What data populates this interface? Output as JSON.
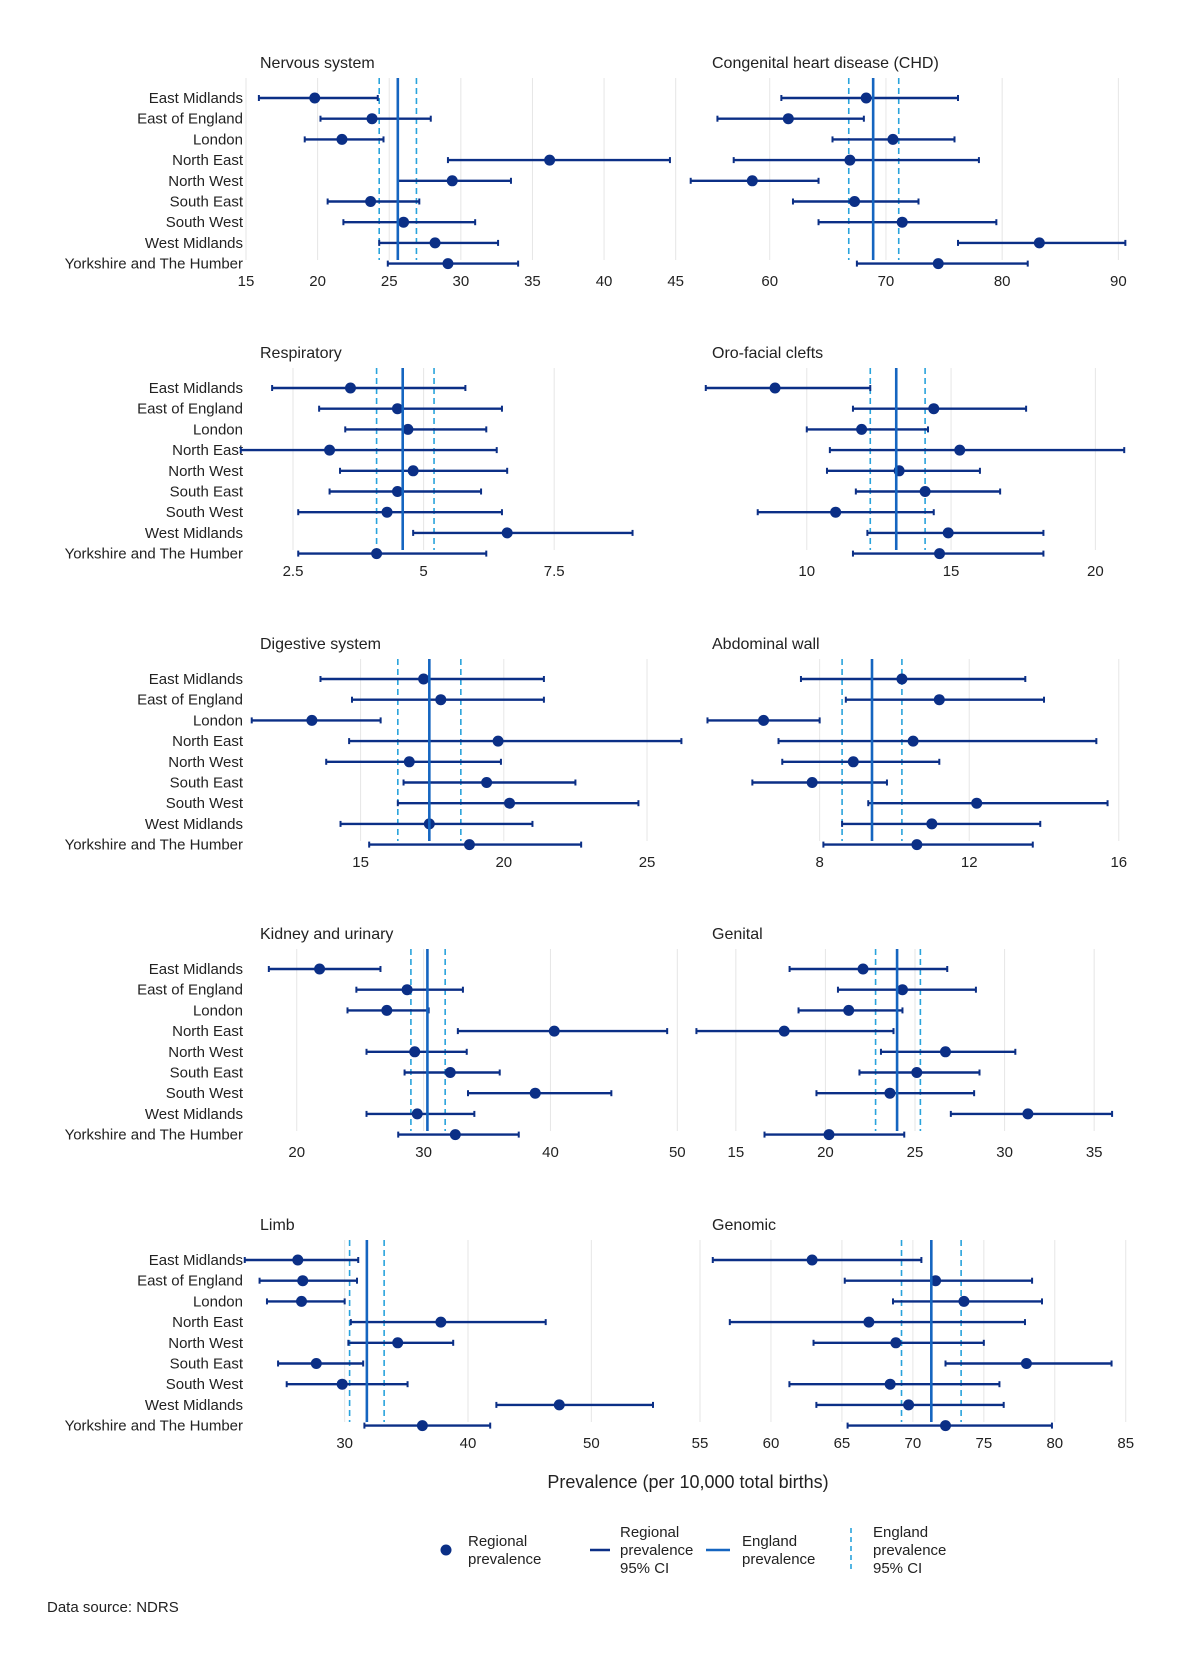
{
  "regions": [
    "East Midlands",
    "East of England",
    "London",
    "North East",
    "North West",
    "South East",
    "South West",
    "West Midlands",
    "Yorkshire and The Humber"
  ],
  "x_axis_title": "Prevalence (per 10,000 total births)",
  "source": "Data source: NDRS",
  "legend": [
    {
      "key": "point",
      "label": "Regional prevalence"
    },
    {
      "key": "ci",
      "label": "Regional prevalence 95% CI"
    },
    {
      "key": "england",
      "label": "England prevalence"
    },
    {
      "key": "england_ci",
      "label": "England prevalence 95% CI"
    }
  ],
  "colors": {
    "point": "#0b2f86",
    "england": "#1565c0",
    "england_ci": "#29a3dc",
    "grid": "#e6e6e6",
    "text": "#222222"
  },
  "chart_data": [
    {
      "type": "scatter",
      "title": "Nervous system",
      "xlim": [
        15,
        46
      ],
      "ticks": [
        15,
        20,
        25,
        30,
        35,
        40,
        45
      ],
      "england": 25.6,
      "england_ci": [
        24.3,
        26.9
      ],
      "series": [
        {
          "region": "East Midlands",
          "value": 19.8,
          "low": 15.9,
          "high": 24.2
        },
        {
          "region": "East of England",
          "value": 23.8,
          "low": 20.2,
          "high": 27.9
        },
        {
          "region": "London",
          "value": 21.7,
          "low": 19.1,
          "high": 24.6
        },
        {
          "region": "North East",
          "value": 36.2,
          "low": 29.1,
          "high": 44.6
        },
        {
          "region": "North West",
          "value": 29.4,
          "low": 25.6,
          "high": 33.5
        },
        {
          "region": "South East",
          "value": 23.7,
          "low": 20.7,
          "high": 27.1
        },
        {
          "region": "South West",
          "value": 26.0,
          "low": 21.8,
          "high": 31.0
        },
        {
          "region": "West Midlands",
          "value": 28.2,
          "low": 24.3,
          "high": 32.6
        },
        {
          "region": "Yorkshire and The Humber",
          "value": 29.1,
          "low": 24.9,
          "high": 34.0
        }
      ]
    },
    {
      "type": "scatter",
      "title": "Congenital heart disease (CHD)",
      "xlim": [
        54,
        91
      ],
      "ticks": [
        60,
        70,
        80,
        90
      ],
      "england": 68.9,
      "england_ci": [
        66.8,
        71.1
      ],
      "series": [
        {
          "region": "East Midlands",
          "value": 68.3,
          "low": 61.0,
          "high": 76.2
        },
        {
          "region": "East of England",
          "value": 61.6,
          "low": 55.5,
          "high": 68.1
        },
        {
          "region": "London",
          "value": 70.6,
          "low": 65.4,
          "high": 75.9
        },
        {
          "region": "North East",
          "value": 66.9,
          "low": 56.9,
          "high": 78.0
        },
        {
          "region": "North West",
          "value": 58.5,
          "low": 53.2,
          "high": 64.2
        },
        {
          "region": "South East",
          "value": 67.3,
          "low": 62.0,
          "high": 72.8
        },
        {
          "region": "South West",
          "value": 71.4,
          "low": 64.2,
          "high": 79.5
        },
        {
          "region": "West Midlands",
          "value": 83.2,
          "low": 76.2,
          "high": 90.6
        },
        {
          "region": "Yorkshire and The Humber",
          "value": 74.5,
          "low": 67.5,
          "high": 82.2
        }
      ]
    },
    {
      "type": "scatter",
      "title": "Respiratory",
      "xlim": [
        1.6,
        10.1
      ],
      "ticks": [
        2.5,
        5,
        7.5
      ],
      "england": 4.6,
      "england_ci": [
        4.1,
        5.2
      ],
      "series": [
        {
          "region": "East Midlands",
          "value": 3.6,
          "low": 2.1,
          "high": 5.8
        },
        {
          "region": "East of England",
          "value": 4.5,
          "low": 3.0,
          "high": 6.5
        },
        {
          "region": "London",
          "value": 4.7,
          "low": 3.5,
          "high": 6.2
        },
        {
          "region": "North East",
          "value": 3.2,
          "low": 1.5,
          "high": 6.4
        },
        {
          "region": "North West",
          "value": 4.8,
          "low": 3.4,
          "high": 6.6
        },
        {
          "region": "South East",
          "value": 4.5,
          "low": 3.2,
          "high": 6.1
        },
        {
          "region": "South West",
          "value": 4.3,
          "low": 2.6,
          "high": 6.5
        },
        {
          "region": "West Midlands",
          "value": 6.6,
          "low": 4.8,
          "high": 9.0
        },
        {
          "region": "Yorkshire and The Humber",
          "value": 4.1,
          "low": 2.6,
          "high": 6.2
        }
      ]
    },
    {
      "type": "scatter",
      "title": "Oro-facial clefts",
      "xlim": [
        6.3,
        21.2
      ],
      "ticks": [
        10,
        15,
        20
      ],
      "england": 13.1,
      "england_ci": [
        12.2,
        14.1
      ],
      "series": [
        {
          "region": "East Midlands",
          "value": 8.9,
          "low": 6.5,
          "high": 12.2
        },
        {
          "region": "East of England",
          "value": 14.4,
          "low": 11.6,
          "high": 17.6
        },
        {
          "region": "London",
          "value": 11.9,
          "low": 10.0,
          "high": 14.2
        },
        {
          "region": "North East",
          "value": 15.3,
          "low": 10.8,
          "high": 21.0
        },
        {
          "region": "North West",
          "value": 13.2,
          "low": 10.7,
          "high": 16.0
        },
        {
          "region": "South East",
          "value": 14.1,
          "low": 11.7,
          "high": 16.7
        },
        {
          "region": "South West",
          "value": 11.0,
          "low": 8.3,
          "high": 14.4
        },
        {
          "region": "West Midlands",
          "value": 14.9,
          "low": 12.1,
          "high": 18.2
        },
        {
          "region": "Yorkshire and The Humber",
          "value": 14.6,
          "low": 11.6,
          "high": 18.2
        }
      ]
    },
    {
      "type": "scatter",
      "title": "Digestive system",
      "xlim": [
        11,
        26.5
      ],
      "ticks": [
        15,
        20,
        25
      ],
      "england": 17.4,
      "england_ci": [
        16.3,
        18.5
      ],
      "series": [
        {
          "region": "East Midlands",
          "value": 17.2,
          "low": 13.6,
          "high": 21.4
        },
        {
          "region": "East of England",
          "value": 17.8,
          "low": 14.7,
          "high": 21.4
        },
        {
          "region": "London",
          "value": 13.3,
          "low": 11.2,
          "high": 15.7
        },
        {
          "region": "North East",
          "value": 19.8,
          "low": 14.6,
          "high": 26.2
        },
        {
          "region": "North West",
          "value": 16.7,
          "low": 13.8,
          "high": 19.9
        },
        {
          "region": "South East",
          "value": 19.4,
          "low": 16.5,
          "high": 22.5
        },
        {
          "region": "South West",
          "value": 20.2,
          "low": 16.3,
          "high": 24.7
        },
        {
          "region": "West Midlands",
          "value": 17.4,
          "low": 14.3,
          "high": 21.0
        },
        {
          "region": "Yorkshire and The Humber",
          "value": 18.8,
          "low": 15.3,
          "high": 22.7
        }
      ]
    },
    {
      "type": "scatter",
      "title": "Abdominal wall",
      "xlim": [
        4.8,
        16.3
      ],
      "ticks": [
        8,
        12,
        16
      ],
      "england": 9.4,
      "england_ci": [
        8.6,
        10.2
      ],
      "series": [
        {
          "region": "East Midlands",
          "value": 10.2,
          "low": 7.5,
          "high": 13.5
        },
        {
          "region": "East of England",
          "value": 11.2,
          "low": 8.7,
          "high": 14.0
        },
        {
          "region": "London",
          "value": 6.5,
          "low": 5.0,
          "high": 8.0
        },
        {
          "region": "North East",
          "value": 10.5,
          "low": 6.9,
          "high": 15.4
        },
        {
          "region": "North West",
          "value": 8.9,
          "low": 7.0,
          "high": 11.2
        },
        {
          "region": "South East",
          "value": 7.8,
          "low": 6.2,
          "high": 9.8
        },
        {
          "region": "South West",
          "value": 12.2,
          "low": 9.3,
          "high": 15.7
        },
        {
          "region": "West Midlands",
          "value": 11.0,
          "low": 8.6,
          "high": 13.9
        },
        {
          "region": "Yorkshire and The Humber",
          "value": 10.6,
          "low": 8.1,
          "high": 13.7
        }
      ]
    },
    {
      "type": "scatter",
      "title": "Kidney and urinary",
      "xlim": [
        16,
        51
      ],
      "ticks": [
        20,
        30,
        40,
        50
      ],
      "england": 30.3,
      "england_ci": [
        29.0,
        31.7
      ],
      "series": [
        {
          "region": "East Midlands",
          "value": 21.8,
          "low": 17.8,
          "high": 26.6
        },
        {
          "region": "East of England",
          "value": 28.7,
          "low": 24.7,
          "high": 33.1
        },
        {
          "region": "London",
          "value": 27.1,
          "low": 24.0,
          "high": 30.4
        },
        {
          "region": "North East",
          "value": 40.3,
          "low": 32.7,
          "high": 49.2
        },
        {
          "region": "North West",
          "value": 29.3,
          "low": 25.5,
          "high": 33.4
        },
        {
          "region": "South East",
          "value": 32.1,
          "low": 28.5,
          "high": 36.0
        },
        {
          "region": "South West",
          "value": 38.8,
          "low": 33.5,
          "high": 44.8
        },
        {
          "region": "West Midlands",
          "value": 29.5,
          "low": 25.5,
          "high": 34.0
        },
        {
          "region": "Yorkshire and The Humber",
          "value": 32.5,
          "low": 28.0,
          "high": 37.5
        }
      ]
    },
    {
      "type": "scatter",
      "title": "Genital",
      "xlim": [
        13,
        37
      ],
      "ticks": [
        15,
        20,
        25,
        30,
        35
      ],
      "england": 24.0,
      "england_ci": [
        22.8,
        25.3
      ],
      "series": [
        {
          "region": "East Midlands",
          "value": 22.1,
          "low": 18.0,
          "high": 26.8
        },
        {
          "region": "East of England",
          "value": 24.3,
          "low": 20.7,
          "high": 28.4
        },
        {
          "region": "London",
          "value": 21.3,
          "low": 18.5,
          "high": 24.3
        },
        {
          "region": "North East",
          "value": 17.7,
          "low": 12.8,
          "high": 23.8
        },
        {
          "region": "North West",
          "value": 26.7,
          "low": 23.1,
          "high": 30.6
        },
        {
          "region": "South East",
          "value": 25.1,
          "low": 21.9,
          "high": 28.6
        },
        {
          "region": "South West",
          "value": 23.6,
          "low": 19.5,
          "high": 28.3
        },
        {
          "region": "West Midlands",
          "value": 31.3,
          "low": 27.0,
          "high": 36.0
        },
        {
          "region": "Yorkshire and The Humber",
          "value": 20.2,
          "low": 16.6,
          "high": 24.4
        }
      ]
    },
    {
      "type": "scatter",
      "title": "Limb",
      "xlim": [
        22,
        58
      ],
      "ticks": [
        30,
        40,
        50
      ],
      "england": 31.8,
      "england_ci": [
        30.4,
        33.2
      ],
      "series": [
        {
          "region": "East Midlands",
          "value": 26.2,
          "low": 21.9,
          "high": 31.1
        },
        {
          "region": "East of England",
          "value": 26.6,
          "low": 23.1,
          "high": 31.0
        },
        {
          "region": "London",
          "value": 26.5,
          "low": 23.7,
          "high": 30.0
        },
        {
          "region": "North East",
          "value": 37.8,
          "low": 30.5,
          "high": 46.3
        },
        {
          "region": "North West",
          "value": 34.3,
          "low": 30.3,
          "high": 38.8
        },
        {
          "region": "South East",
          "value": 27.7,
          "low": 24.6,
          "high": 31.5
        },
        {
          "region": "South West",
          "value": 29.8,
          "low": 25.3,
          "high": 35.1
        },
        {
          "region": "West Midlands",
          "value": 47.4,
          "low": 42.3,
          "high": 55.0
        },
        {
          "region": "Yorkshire and The Humber",
          "value": 36.3,
          "low": 31.6,
          "high": 41.8
        }
      ]
    },
    {
      "type": "scatter",
      "title": "Genomic",
      "xlim": [
        55,
        85.3
      ],
      "ticks": [
        55,
        60,
        65,
        70,
        75,
        80,
        85
      ],
      "england": 71.3,
      "england_ci": [
        69.2,
        73.4
      ],
      "series": [
        {
          "region": "East Midlands",
          "value": 62.9,
          "low": 55.9,
          "high": 70.6
        },
        {
          "region": "East of England",
          "value": 71.6,
          "low": 65.2,
          "high": 78.4
        },
        {
          "region": "London",
          "value": 73.6,
          "low": 68.6,
          "high": 79.1
        },
        {
          "region": "North East",
          "value": 66.9,
          "low": 57.1,
          "high": 77.9
        },
        {
          "region": "North West",
          "value": 68.8,
          "low": 63.0,
          "high": 75.0
        },
        {
          "region": "South East",
          "value": 78.0,
          "low": 72.3,
          "high": 84.0
        },
        {
          "region": "South West",
          "value": 68.4,
          "low": 61.3,
          "high": 76.1
        },
        {
          "region": "West Midlands",
          "value": 69.7,
          "low": 63.2,
          "high": 76.4
        },
        {
          "region": "Yorkshire and The Humber",
          "value": 72.3,
          "low": 65.4,
          "high": 79.8
        }
      ]
    }
  ]
}
